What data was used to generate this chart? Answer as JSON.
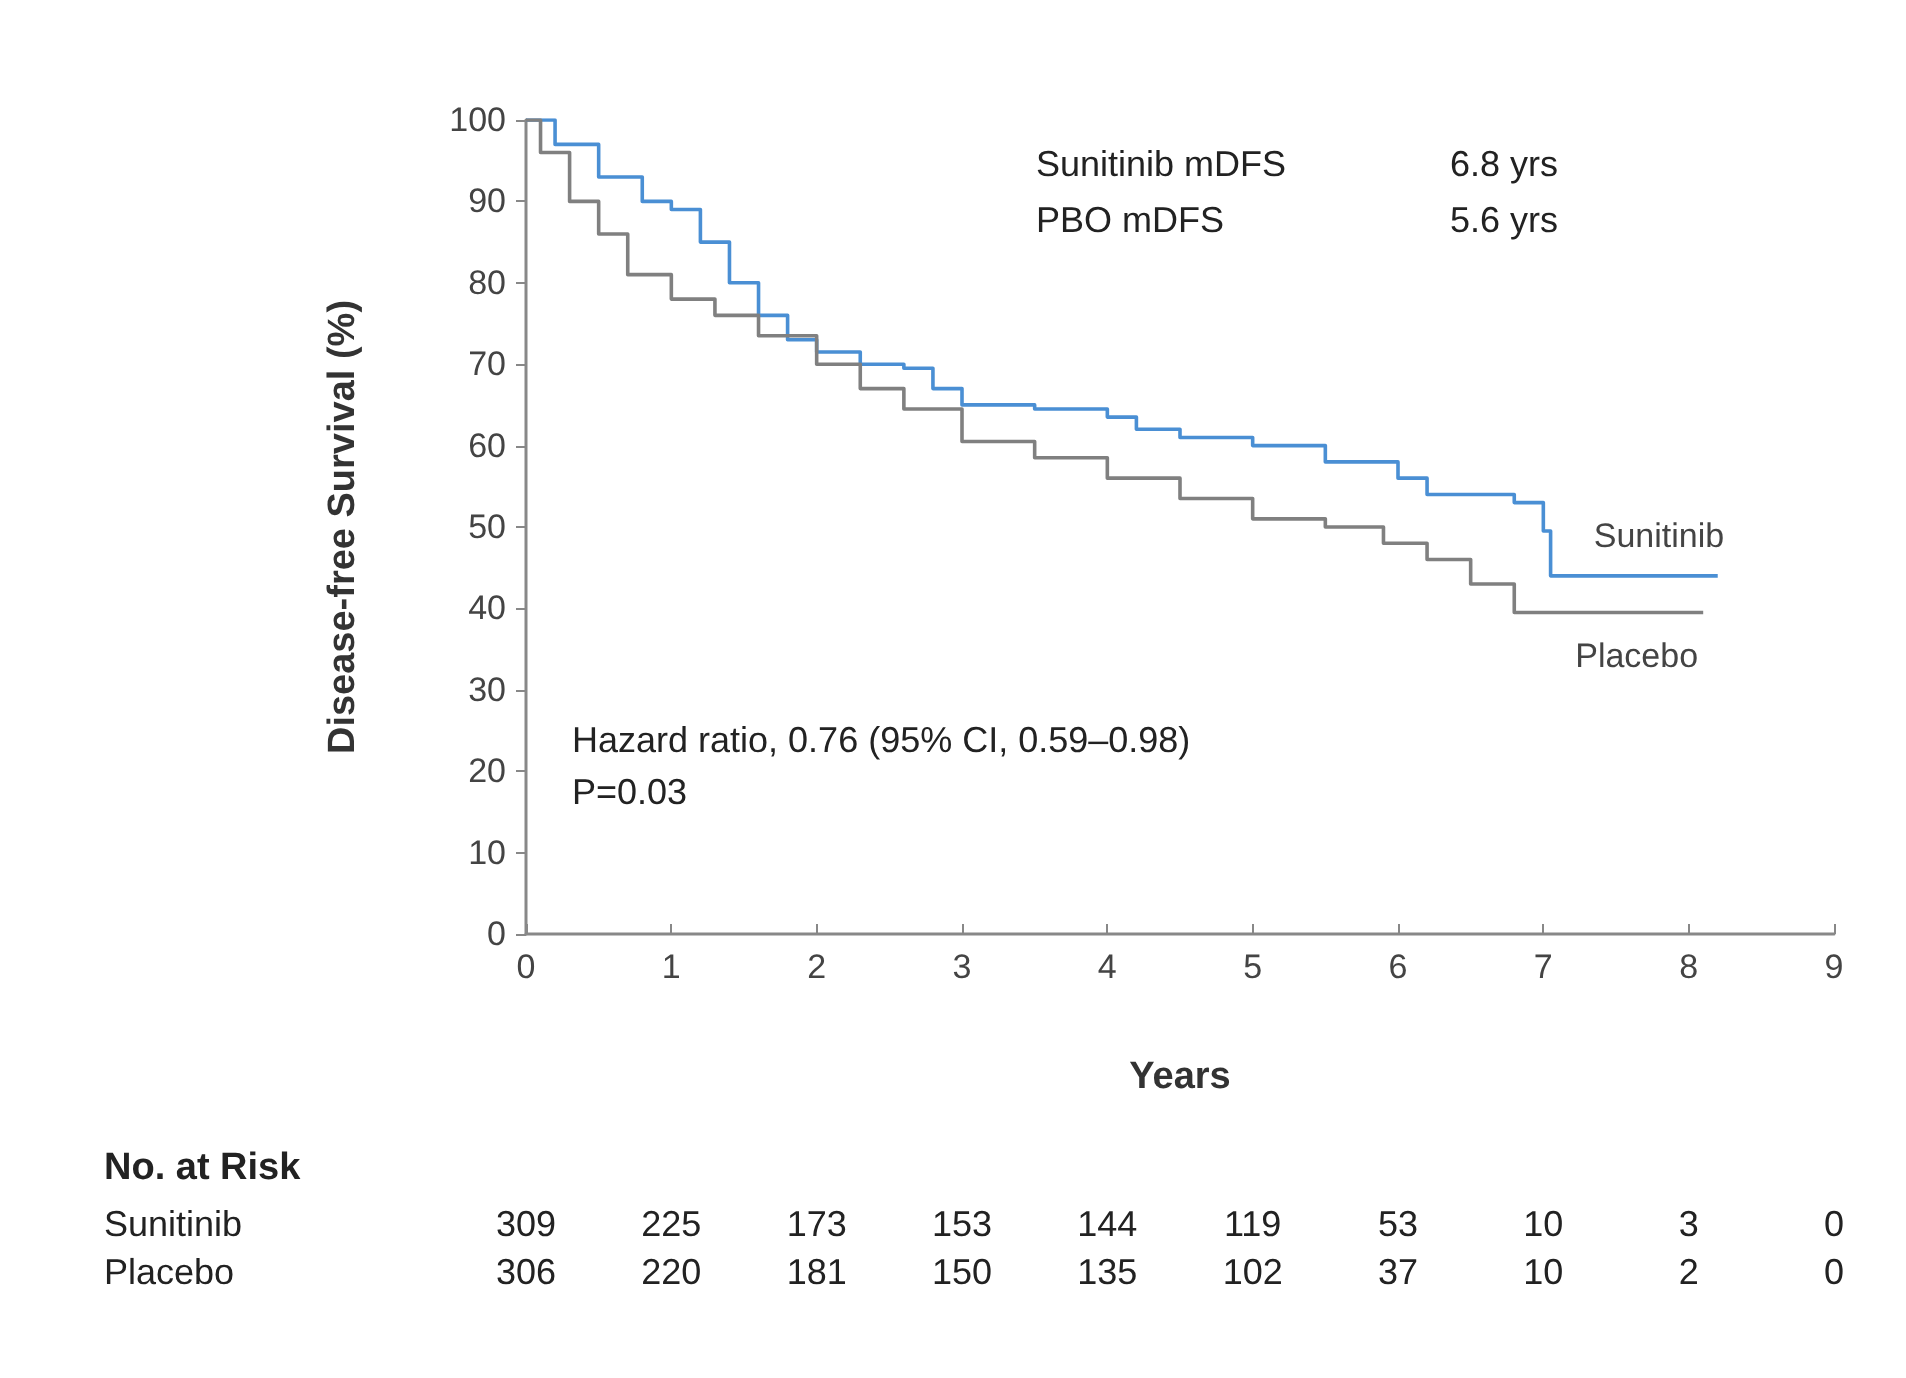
{
  "chart_data": {
    "type": "step",
    "xlabel": "Years",
    "ylabel": "Disease-free Survival (%)",
    "xlim": [
      0,
      9
    ],
    "xticks": [
      0,
      1,
      2,
      3,
      4,
      5,
      6,
      7,
      8,
      9
    ],
    "ylim": [
      0,
      100
    ],
    "yticks": [
      0,
      10,
      20,
      30,
      40,
      50,
      60,
      70,
      80,
      90,
      100
    ],
    "grid": false,
    "legend": false,
    "series": [
      {
        "name": "Sunitinib",
        "color": "#4a8fd4",
        "x": [
          0,
          0.2,
          0.5,
          0.8,
          1.0,
          1.2,
          1.4,
          1.6,
          1.8,
          2.0,
          2.3,
          2.6,
          2.8,
          3.0,
          3.5,
          4.0,
          4.2,
          4.5,
          5.0,
          5.5,
          6.0,
          6.2,
          6.8,
          7.0,
          7.05,
          8.2
        ],
        "values": [
          100,
          97,
          93,
          90,
          89,
          85,
          80,
          76,
          73,
          71.5,
          70,
          69.5,
          67,
          65,
          64.5,
          63.5,
          62,
          61,
          60,
          58,
          56,
          54,
          53,
          49.5,
          44,
          44
        ]
      },
      {
        "name": "Placebo",
        "color": "#808080",
        "x": [
          0,
          0.1,
          0.3,
          0.5,
          0.7,
          1.0,
          1.3,
          1.6,
          2.0,
          2.3,
          2.6,
          3.0,
          3.5,
          4.0,
          4.5,
          5.0,
          5.5,
          5.9,
          6.2,
          6.5,
          6.8,
          8.1
        ],
        "values": [
          100,
          96,
          90,
          86,
          81,
          78,
          76,
          73.5,
          70,
          67,
          64.5,
          60.5,
          58.5,
          56,
          53.5,
          51,
          50,
          48,
          46,
          43,
          39.5,
          39.5
        ]
      }
    ],
    "annotations": [
      "Sunitinib mDFS",
      "6.8 yrs",
      "PBO mDFS",
      "5.6 yrs",
      "Hazard ratio, 0.76 (95% CI, 0.59–0.98)",
      "P=0.03",
      "No. at Risk",
      "Sunitinib 309 225 173 153 144 119 53 10 3 0",
      "Placebo 306 220 181 150 135 102 37 10 2 0"
    ]
  }
}
